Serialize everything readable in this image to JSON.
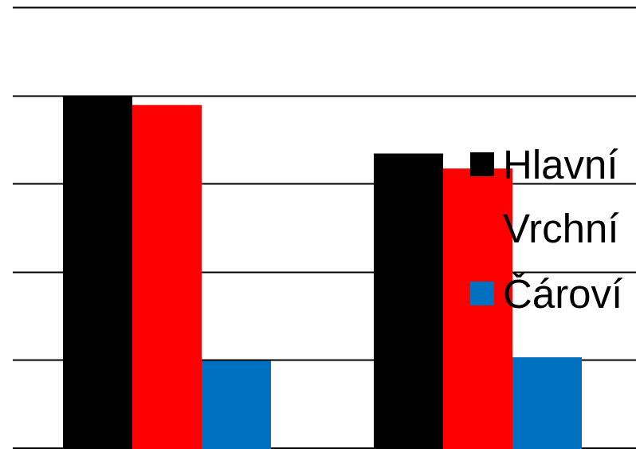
{
  "chart_data": {
    "type": "bar",
    "categories": [
      "",
      ""
    ],
    "ylim": [
      0,
      5
    ],
    "grid": true,
    "legend_position": "right",
    "series": [
      {
        "name": "Hlavní",
        "color": "#000000",
        "values": [
          4.0,
          3.35
        ]
      },
      {
        "name": "Vrchní",
        "color": "#ff0000",
        "values": [
          3.9,
          3.18
        ]
      },
      {
        "name": "Čároví",
        "color": "#0070c0",
        "values": [
          1.0,
          1.04
        ]
      }
    ]
  }
}
